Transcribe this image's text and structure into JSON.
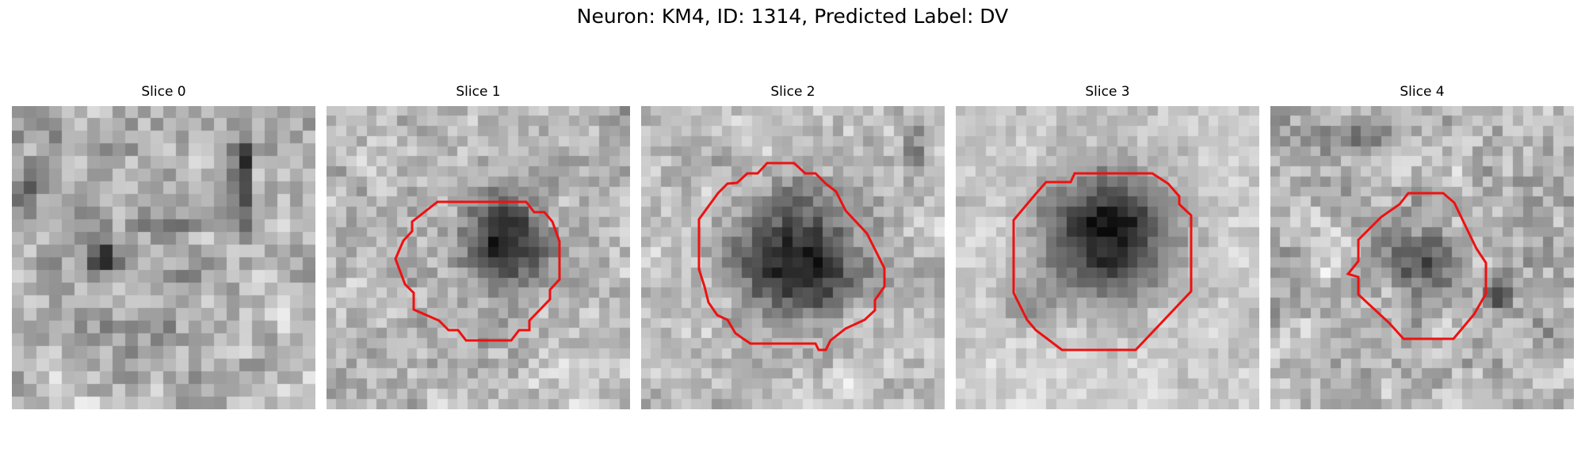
{
  "figure": {
    "suptitle": "Neuron: KM4, ID: 1314, Predicted Label: DV"
  },
  "colors": {
    "background": "#ffffff",
    "contour": "#ee1111",
    "colormap": "grayscale"
  },
  "panels": [
    {
      "title": "Slice 0",
      "has_contour": false,
      "dark_blob": "small dark spot left of center"
    },
    {
      "title": "Slice 1",
      "has_contour": true,
      "dark_blob": "dark region right of center"
    },
    {
      "title": "Slice 2",
      "has_contour": true,
      "dark_blob": "large dark region center"
    },
    {
      "title": "Slice 3",
      "has_contour": true,
      "dark_blob": "large dark region center"
    },
    {
      "title": "Slice 4",
      "has_contour": true,
      "dark_blob": "small dark region center"
    }
  ]
}
